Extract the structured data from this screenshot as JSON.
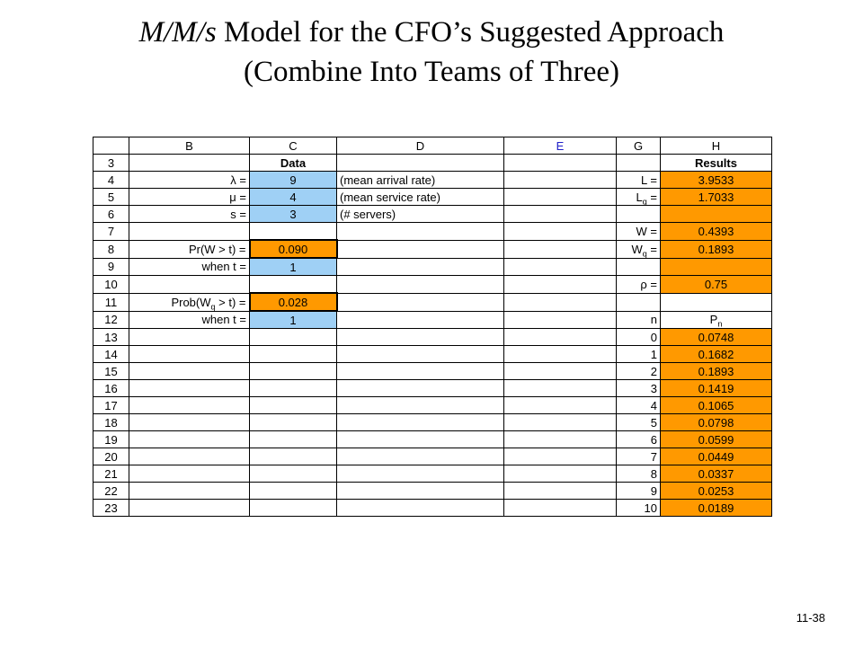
{
  "title": {
    "italic": "M/M/s",
    "line1_rest": " Model for the CFO’s Suggested Approach",
    "line2": "(Combine Into Teams of Three)"
  },
  "footer": {
    "page": "11-38"
  },
  "colors": {
    "input": "#9fd0f5",
    "output": "#ff9900",
    "header_blue": "#2020c8"
  },
  "sheet": {
    "col_headers": {
      "B": "B",
      "C": "C",
      "D": "D",
      "E": "E",
      "G": "G",
      "H": "H"
    },
    "rows": {
      "r3": {
        "num": "3",
        "C": "Data",
        "H": "Results"
      },
      "r4": {
        "num": "4",
        "B": "λ =",
        "C": "9",
        "D": "(mean arrival rate)",
        "G": "L =",
        "H": "3.9533"
      },
      "r5": {
        "num": "5",
        "B": "μ =",
        "C": "4",
        "D": "(mean service rate)",
        "G_main": "L",
        "G_sub": "q",
        "G_tail": " =",
        "H": "1.7033"
      },
      "r6": {
        "num": "6",
        "B": "s =",
        "C": "3",
        "D": "(# servers)"
      },
      "r7": {
        "num": "7",
        "G": "W =",
        "H": "0.4393"
      },
      "r8": {
        "num": "8",
        "B": "Pr(W > t) =",
        "C": "0.090",
        "G_main": "W",
        "G_sub": "q",
        "G_tail": " =",
        "H": "0.1893"
      },
      "r9": {
        "num": "9",
        "B": "when t =",
        "C": "1"
      },
      "r10": {
        "num": "10",
        "G": "ρ =",
        "H": "0.75"
      },
      "r11": {
        "num": "11",
        "B_main": "Prob(W",
        "B_sub": "q",
        "B_tail": " > t) =",
        "C": "0.028"
      },
      "r12": {
        "num": "12",
        "B": "when t =",
        "C": "1",
        "G": "n",
        "H_main": "P",
        "H_sub": "n"
      }
    },
    "pn_rows": [
      {
        "num": "13",
        "n": "0",
        "p": "0.0748"
      },
      {
        "num": "14",
        "n": "1",
        "p": "0.1682"
      },
      {
        "num": "15",
        "n": "2",
        "p": "0.1893"
      },
      {
        "num": "16",
        "n": "3",
        "p": "0.1419"
      },
      {
        "num": "17",
        "n": "4",
        "p": "0.1065"
      },
      {
        "num": "18",
        "n": "5",
        "p": "0.0798"
      },
      {
        "num": "19",
        "n": "6",
        "p": "0.0599"
      },
      {
        "num": "20",
        "n": "7",
        "p": "0.0449"
      },
      {
        "num": "21",
        "n": "8",
        "p": "0.0337"
      },
      {
        "num": "22",
        "n": "9",
        "p": "0.0253"
      },
      {
        "num": "23",
        "n": "10",
        "p": "0.0189"
      }
    ]
  }
}
